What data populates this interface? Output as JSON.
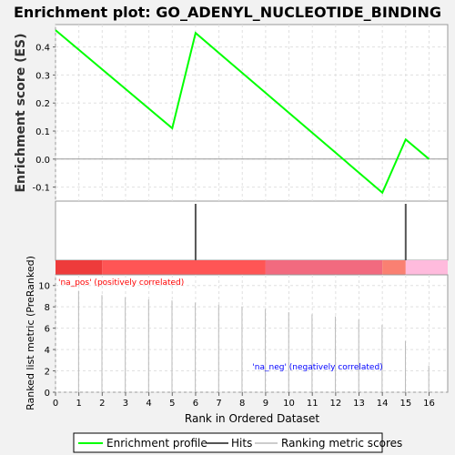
{
  "chart_data": [
    {
      "type": "line",
      "title": "Enrichment plot: GO_ADENYL_NUCLEOTIDE_BINDING",
      "ylabel": "Enrichment score (ES)",
      "xlim": [
        0,
        16.8
      ],
      "ylim": [
        -0.15,
        0.48
      ],
      "yticks": [
        -0.1,
        0.0,
        0.1,
        0.2,
        0.3,
        0.4
      ],
      "ytick_labels": [
        "-0.1",
        "0.0",
        "0.1",
        "0.2",
        "0.3",
        "0.4"
      ],
      "grid": true,
      "series": [
        {
          "name": "Enrichment profile",
          "color": "#00ff00",
          "x": [
            0,
            5,
            6,
            14,
            15,
            16
          ],
          "y": [
            0.46,
            0.11,
            0.45,
            -0.12,
            0.07,
            0.0
          ]
        }
      ]
    },
    {
      "type": "bar",
      "series_name": "Hits",
      "color": "#555555",
      "hit_positions": [
        6,
        15
      ]
    },
    {
      "type": "bar",
      "ylabel": "Ranked list metric (PreRanked)",
      "xlabel": "Rank in Ordered Dataset",
      "xlim": [
        0,
        16.8
      ],
      "ylim": [
        0,
        11
      ],
      "xticks": [
        0,
        1,
        2,
        3,
        4,
        5,
        6,
        7,
        8,
        9,
        10,
        11,
        12,
        13,
        14,
        15,
        16
      ],
      "xtick_labels": [
        "0",
        "1",
        "2",
        "3",
        "4",
        "5",
        "6",
        "7",
        "8",
        "9",
        "10",
        "11",
        "12",
        "13",
        "14",
        "15",
        "16"
      ],
      "yticks": [
        0,
        2,
        4,
        6,
        8,
        10
      ],
      "ytick_labels": [
        "0",
        "2",
        "4",
        "6",
        "8",
        "10"
      ],
      "grid": true,
      "series_name": "Ranking metric scores",
      "x": [
        1,
        2,
        3,
        4,
        5,
        6,
        7,
        8,
        9,
        10,
        11,
        12,
        13,
        14,
        15,
        16
      ],
      "values": [
        9.5,
        9.1,
        8.9,
        8.7,
        8.6,
        8.4,
        8.2,
        8.0,
        7.8,
        7.5,
        7.3,
        7.1,
        6.8,
        6.3,
        4.8,
        2.5
      ],
      "pos_label": "'na_pos' (positively correlated)",
      "neg_label": "'na_neg' (negatively correlated)",
      "pos_color": "#ff0000",
      "neg_color": "#0000ff",
      "heatmap": [
        {
          "from": 0,
          "to": 2,
          "color": "#ee3b3b"
        },
        {
          "from": 2,
          "to": 9,
          "color": "#ff5555"
        },
        {
          "from": 9,
          "to": 14,
          "color": "#f26a7f"
        },
        {
          "from": 14,
          "to": 15,
          "color": "#fa8072"
        },
        {
          "from": 15,
          "to": 16.8,
          "color": "#ffbbdd"
        }
      ]
    }
  ],
  "legend": {
    "items": [
      {
        "label": "Enrichment profile",
        "color": "#00ff00"
      },
      {
        "label": "Hits",
        "color": "#555555"
      },
      {
        "label": "Ranking metric scores",
        "color": "#cccccc"
      }
    ]
  }
}
